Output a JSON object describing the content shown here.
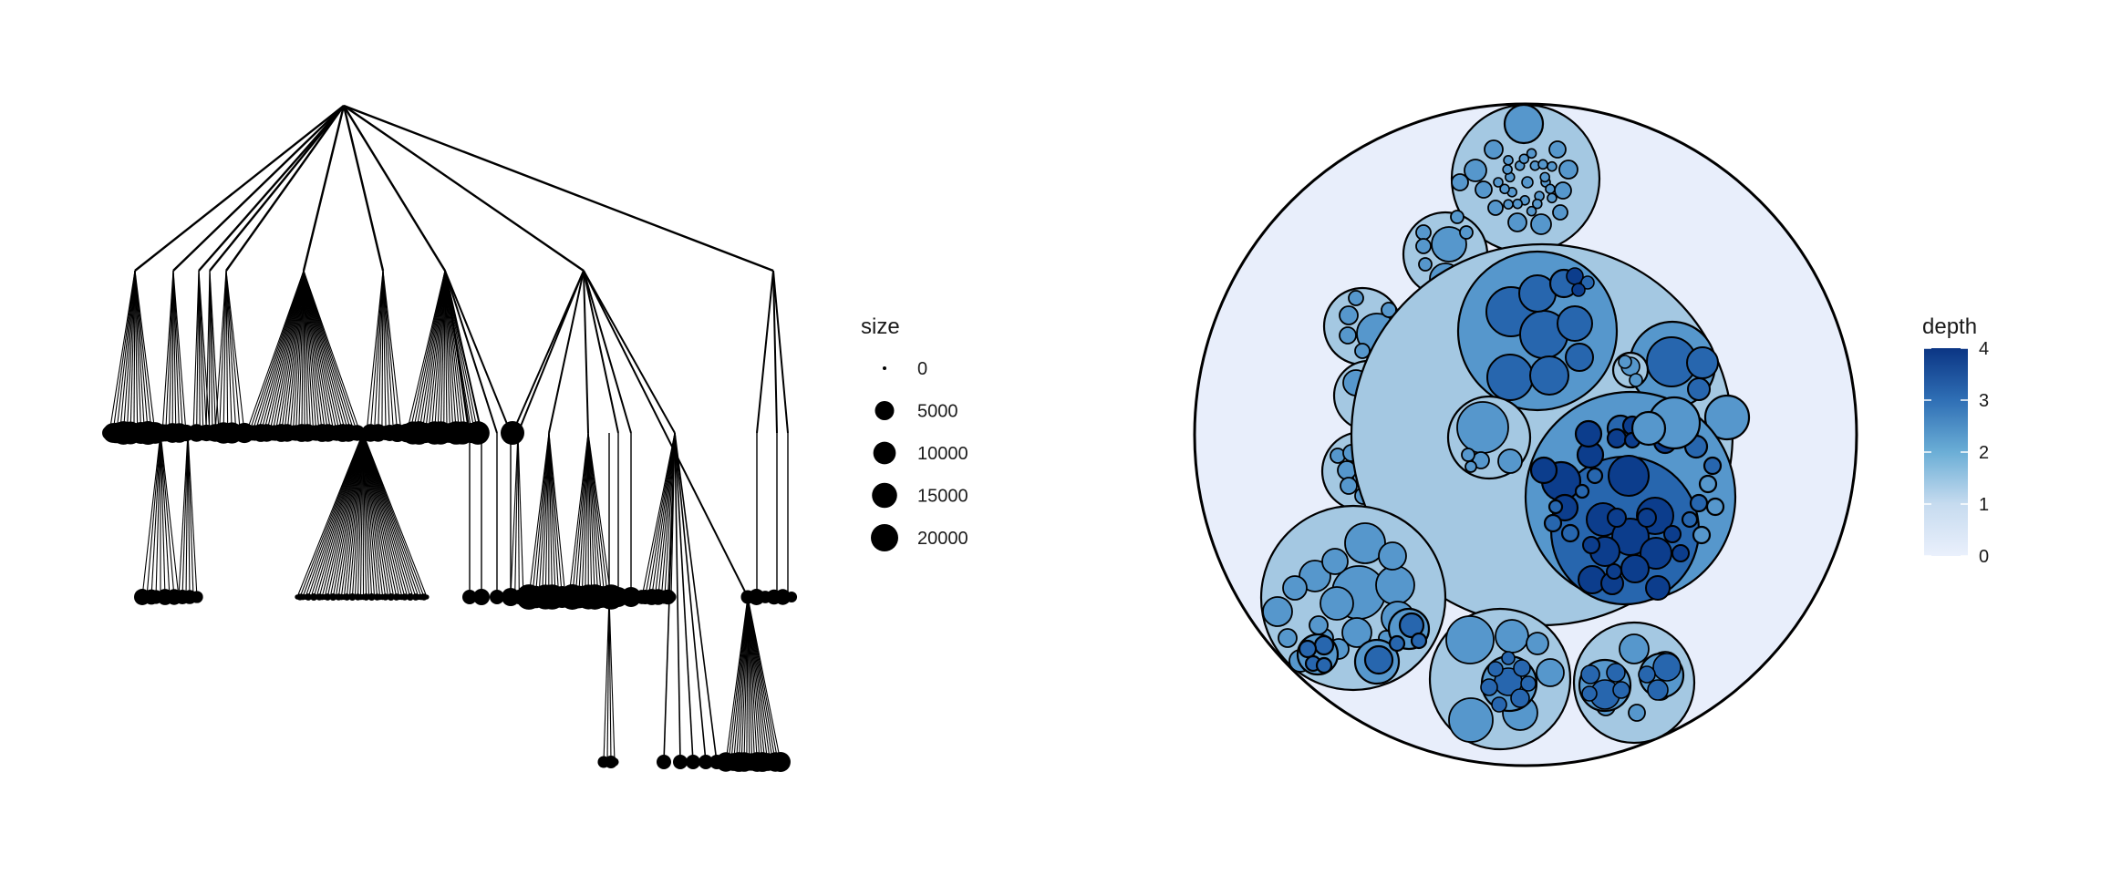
{
  "size_legend": {
    "title": "size",
    "entries": [
      {
        "label": "0",
        "value": 0
      },
      {
        "label": "5000",
        "value": 5000
      },
      {
        "label": "10000",
        "value": 10000
      },
      {
        "label": "15000",
        "value": 15000
      },
      {
        "label": "20000",
        "value": 20000
      }
    ]
  },
  "depth_legend": {
    "title": "depth",
    "ticks": [
      "0",
      "1",
      "2",
      "3",
      "4"
    ],
    "low_color": "#eaf0fc",
    "high_color": "#0b3584"
  },
  "colors": {
    "stroke": "#000000",
    "depth_0": "#e8eefb",
    "depth_1": "#a4c8e2",
    "depth_2": "#5697cc",
    "depth_3": "#2766ae",
    "depth_4": "#0c3d8c"
  }
}
